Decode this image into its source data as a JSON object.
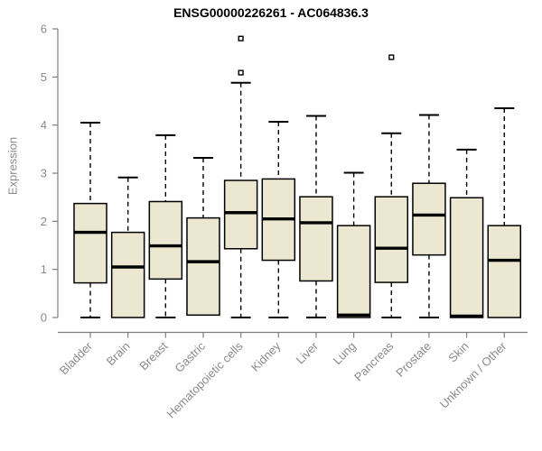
{
  "chart_data": {
    "type": "boxplot",
    "title": "ENSG00000226261 - AC064836.3",
    "ylabel": "Expression",
    "xlabel": "",
    "ylim": [
      0,
      6
    ],
    "y_ticks": [
      0,
      1,
      2,
      3,
      4,
      5,
      6
    ],
    "grid": false,
    "legend": "none",
    "colors": {
      "box_fill": "#ece7d0",
      "box_border": "#000000",
      "median": "#000000",
      "whisker": "#000000",
      "axis": "#7e7e7e",
      "tick_label": "#8a8a8a",
      "title": "#000000"
    },
    "categories": [
      "Bladder",
      "Brain",
      "Breast",
      "Gastric",
      "Hematopoietic cells",
      "Kidney",
      "Liver",
      "Lung",
      "Pancreas",
      "Prostate",
      "Skin",
      "Unknown / Other"
    ],
    "series": [
      {
        "name": "Bladder",
        "min": 0,
        "q1": 0.72,
        "median": 1.77,
        "q3": 2.37,
        "max": 4.05,
        "outliers": []
      },
      {
        "name": "Brain",
        "min": 0,
        "q1": 0,
        "median": 1.05,
        "q3": 1.77,
        "max": 2.91,
        "outliers": []
      },
      {
        "name": "Breast",
        "min": 0,
        "q1": 0.8,
        "median": 1.49,
        "q3": 2.41,
        "max": 3.79,
        "outliers": []
      },
      {
        "name": "Gastric",
        "min": 0.05,
        "q1": 0.05,
        "median": 1.16,
        "q3": 2.07,
        "max": 3.32,
        "outliers": []
      },
      {
        "name": "Hematopoietic cells",
        "min": 0,
        "q1": 1.43,
        "median": 2.18,
        "q3": 2.85,
        "max": 4.88,
        "outliers": [
          5.09,
          5.8
        ]
      },
      {
        "name": "Kidney",
        "min": 0,
        "q1": 1.19,
        "median": 2.05,
        "q3": 2.88,
        "max": 4.07,
        "outliers": []
      },
      {
        "name": "Liver",
        "min": 0,
        "q1": 0.76,
        "median": 1.97,
        "q3": 2.51,
        "max": 4.19,
        "outliers": []
      },
      {
        "name": "Lung",
        "min": 0,
        "q1": 0,
        "median": 0.05,
        "q3": 1.91,
        "max": 3.01,
        "outliers": []
      },
      {
        "name": "Pancreas",
        "min": 0,
        "q1": 0.73,
        "median": 1.44,
        "q3": 2.51,
        "max": 3.83,
        "outliers": [
          5.41
        ]
      },
      {
        "name": "Prostate",
        "min": 0,
        "q1": 1.3,
        "median": 2.13,
        "q3": 2.79,
        "max": 4.21,
        "outliers": []
      },
      {
        "name": "Skin",
        "min": 0,
        "q1": 0,
        "median": 0.03,
        "q3": 2.49,
        "max": 3.49,
        "outliers": []
      },
      {
        "name": "Unknown / Other",
        "min": 0,
        "q1": 0,
        "median": 1.19,
        "q3": 1.91,
        "max": 4.35,
        "outliers": []
      }
    ]
  }
}
